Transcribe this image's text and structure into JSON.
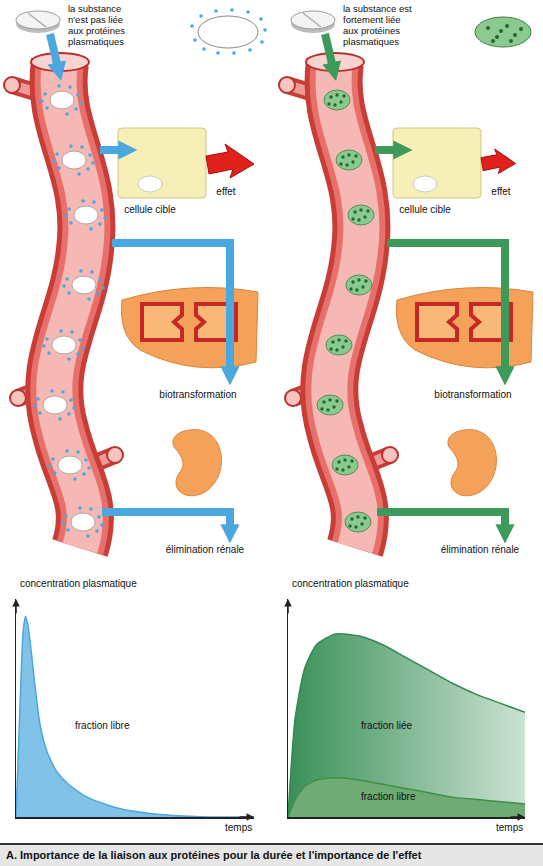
{
  "panels": [
    {
      "substance": [
        "la substance",
        "n'est pas liée",
        "aux protéines",
        "plasmatiques"
      ],
      "color": "#4aa8de",
      "target": "cellule cible",
      "effect": "effet",
      "liver": "biotransformation",
      "kidney": "élimination rénale"
    },
    {
      "substance": [
        "la substance est",
        "fortement liée",
        "aux protéines",
        "plasmatiques"
      ],
      "color": "#3d9a5a",
      "target": "cellule cible",
      "effect": "effet",
      "liver": "biotransformation",
      "kidney": "élimination rénale"
    }
  ],
  "chart_data": [
    {
      "type": "area",
      "x_label": "temps",
      "y_label": "concentration plasmatique",
      "xlim": [
        0,
        10
      ],
      "ylim": [
        0,
        10
      ],
      "tick_labels": false,
      "grid": false,
      "x": [
        0,
        0.15,
        0.3,
        0.4,
        0.5,
        0.65,
        0.8,
        1.0,
        1.3,
        1.7,
        2.2,
        3.0,
        4.3,
        5.7,
        7.0,
        8.5,
        10
      ],
      "series": [
        {
          "name": "fraction libre",
          "color": "#4aa8de",
          "values": [
            0,
            4.5,
            8.5,
            9.2,
            8.8,
            7.5,
            6.0,
            4.3,
            3.0,
            2.1,
            1.5,
            0.9,
            0.4,
            0.15,
            0.05,
            0,
            0
          ]
        }
      ]
    },
    {
      "type": "area",
      "x_label": "temps",
      "y_label": "concentration plasmatique",
      "xlim": [
        0,
        10
      ],
      "ylim": [
        0,
        10
      ],
      "tick_labels": false,
      "grid": false,
      "stacked": true,
      "x": [
        0,
        0.3,
        0.7,
        1.2,
        2.0,
        3.0,
        4.0,
        5.0,
        6.0,
        7.0,
        8.0,
        9.0,
        10.0
      ],
      "series": [
        {
          "name": "fraction libre",
          "color": "#3f8f45",
          "values": [
            0,
            0.8,
            1.4,
            1.7,
            1.8,
            1.7,
            1.5,
            1.3,
            1.1,
            0.9,
            0.8,
            0.7,
            0.6
          ]
        },
        {
          "name": "fraction liée",
          "color": "#2f8a4f",
          "values": [
            0,
            3.7,
            5.4,
            6.2,
            6.6,
            6.6,
            6.4,
            6.0,
            5.6,
            5.2,
            4.8,
            4.5,
            4.2
          ]
        }
      ]
    }
  ],
  "caption": "A. Importance de la liaison aux protéines pour la durée et l'importance de l'effet"
}
